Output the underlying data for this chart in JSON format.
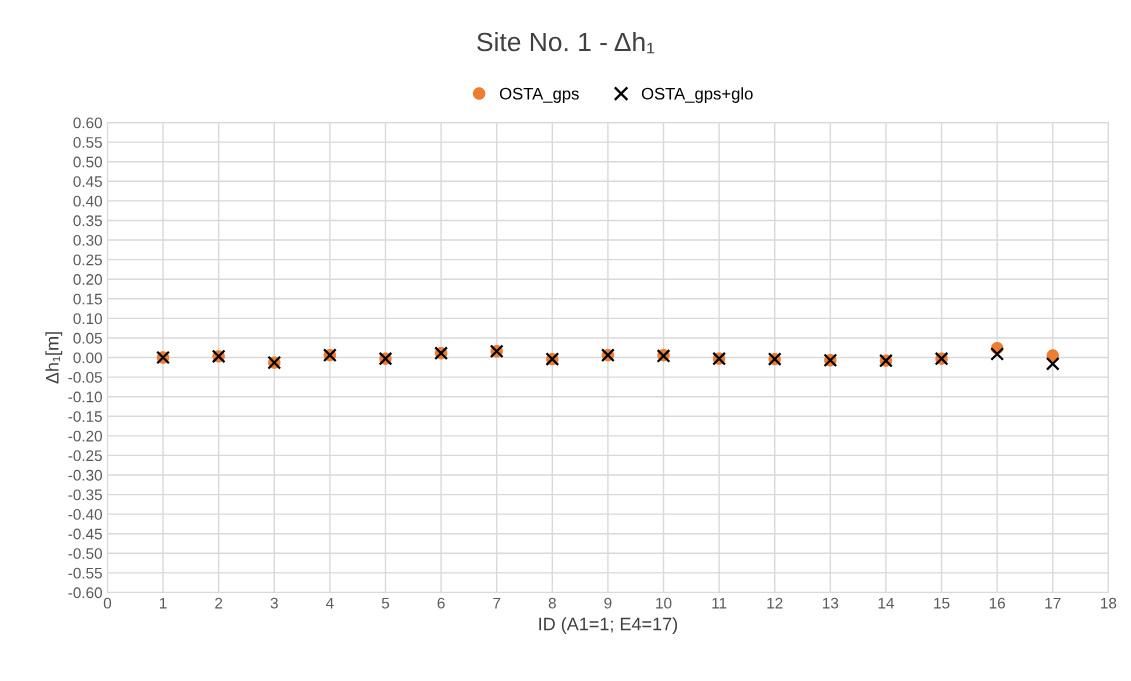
{
  "chart_data": {
    "type": "scatter",
    "title": "Site No. 1 - Δh₁",
    "xlabel": "ID (A1=1; E4=17)",
    "ylabel": "Δh₁[m]",
    "x": [
      1,
      2,
      3,
      4,
      5,
      6,
      7,
      8,
      9,
      10,
      11,
      12,
      13,
      14,
      15,
      16,
      17
    ],
    "series": [
      {
        "name": "OSTA_gps",
        "color": "#ed7d31",
        "marker": "circle",
        "values": [
          0.0,
          0.003,
          -0.013,
          0.006,
          -0.003,
          0.011,
          0.016,
          -0.004,
          0.006,
          0.006,
          -0.003,
          -0.004,
          -0.007,
          -0.008,
          -0.003,
          0.024,
          0.005
        ]
      },
      {
        "name": "OSTA_gps+glo",
        "color": "#000000",
        "marker": "cross",
        "values": [
          0.0,
          0.003,
          -0.013,
          0.006,
          -0.003,
          0.011,
          0.016,
          -0.004,
          0.006,
          0.004,
          -0.003,
          -0.004,
          -0.007,
          -0.008,
          -0.003,
          0.009,
          -0.016
        ]
      }
    ],
    "xlim": [
      0,
      18
    ],
    "xticks": [
      0,
      1,
      2,
      3,
      4,
      5,
      6,
      7,
      8,
      9,
      10,
      11,
      12,
      13,
      14,
      15,
      16,
      17,
      18
    ],
    "ylim": [
      -0.6,
      0.6
    ],
    "yticks": [
      {
        "value": -0.6,
        "label": "-0.60"
      },
      {
        "value": -0.55,
        "label": "-0.55"
      },
      {
        "value": -0.5,
        "label": "-0.50"
      },
      {
        "value": -0.45,
        "label": "-0.45"
      },
      {
        "value": -0.4,
        "label": "-0.40"
      },
      {
        "value": -0.35,
        "label": "-0.35"
      },
      {
        "value": -0.3,
        "label": "-0.30"
      },
      {
        "value": -0.25,
        "label": "-0.25"
      },
      {
        "value": -0.2,
        "label": "-0.20"
      },
      {
        "value": -0.15,
        "label": "-0.15"
      },
      {
        "value": -0.1,
        "label": "-0.10"
      },
      {
        "value": -0.05,
        "label": "-0.05"
      },
      {
        "value": 0,
        "label": "0.00"
      },
      {
        "value": 0.05,
        "label": "0.05"
      },
      {
        "value": 0.1,
        "label": "0.10"
      },
      {
        "value": 0.15,
        "label": "0.15"
      },
      {
        "value": 0.2,
        "label": "0.20"
      },
      {
        "value": 0.25,
        "label": "0.25"
      },
      {
        "value": 0.3,
        "label": "0.30"
      },
      {
        "value": 0.35,
        "label": "0.35"
      },
      {
        "value": 0.4,
        "label": "0.40"
      },
      {
        "value": 0.45,
        "label": "0.45"
      },
      {
        "value": 0.5,
        "label": "0.50"
      },
      {
        "value": 0.55,
        "label": "0.55"
      },
      {
        "value": 0.6,
        "label": "0.60"
      }
    ],
    "grid": true,
    "legend": "top"
  }
}
